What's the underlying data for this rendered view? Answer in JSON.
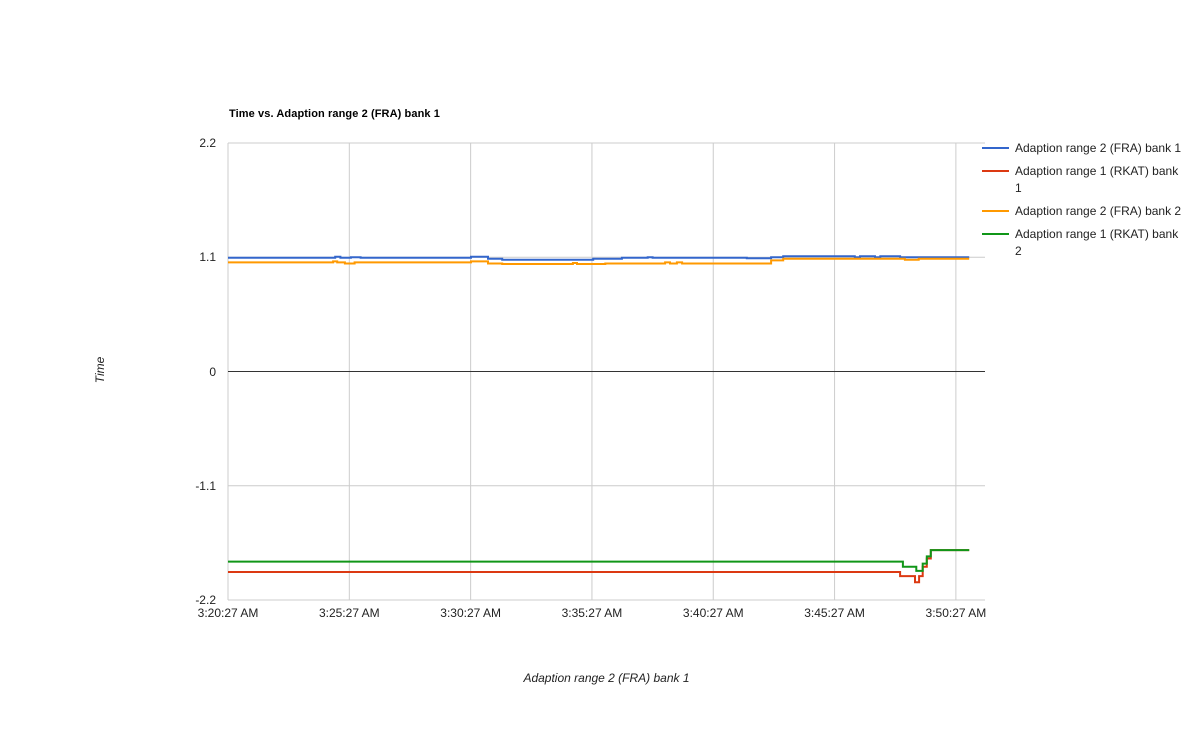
{
  "title": "Time vs. Adaption range 2 (FRA) bank 1",
  "axes": {
    "y_title": "Time",
    "x_title": "Adaption range 2 (FRA) bank 1"
  },
  "colors": {
    "series_blue": "#3366CC",
    "series_red": "#DC3912",
    "series_orange": "#FF9900",
    "series_green": "#109618",
    "gridline": "#CCCCCC",
    "zero_line": "#333333",
    "text": "#222222"
  },
  "chart_data": {
    "type": "line",
    "title": "Time vs. Adaption range 2 (FRA) bank 1",
    "xlabel": "Adaption range 2 (FRA) bank 1",
    "ylabel": "Time",
    "x_ticks": [
      "3:20:27 AM",
      "3:25:27 AM",
      "3:30:27 AM",
      "3:35:27 AM",
      "3:40:27 AM",
      "3:45:27 AM",
      "3:50:27 AM"
    ],
    "y_ticks": [
      "2.2",
      "1.1",
      "0",
      "-1.1",
      "-2.2"
    ],
    "ylim": [
      -2.2,
      2.2
    ],
    "grid": true,
    "legend_position": "right",
    "interpolation": "step-after",
    "series": [
      {
        "name": "Adaption range 2 (FRA) bank 1",
        "color": "#3366CC",
        "points": [
          [
            "3:20:27",
            1.095
          ],
          [
            "3:24:52",
            1.105
          ],
          [
            "3:25:05",
            1.095
          ],
          [
            "3:25:31",
            1.1
          ],
          [
            "3:25:55",
            1.095
          ],
          [
            "3:30:28",
            1.105
          ],
          [
            "3:31:10",
            1.085
          ],
          [
            "3:31:45",
            1.075
          ],
          [
            "3:35:30",
            1.085
          ],
          [
            "3:36:41",
            1.095
          ],
          [
            "3:37:45",
            1.1
          ],
          [
            "3:37:57",
            1.095
          ],
          [
            "3:41:50",
            1.09
          ],
          [
            "3:42:50",
            1.1
          ],
          [
            "3:43:20",
            1.11
          ],
          [
            "3:46:17",
            1.1
          ],
          [
            "3:46:30",
            1.11
          ],
          [
            "3:47:07",
            1.1
          ],
          [
            "3:47:20",
            1.11
          ],
          [
            "3:48:09",
            1.1
          ],
          [
            "3:51:00",
            1.1
          ]
        ]
      },
      {
        "name": "Adaption range 1 (RKAT) bank 1",
        "color": "#DC3912",
        "points": [
          [
            "3:20:27",
            -1.93
          ],
          [
            "3:48:09",
            -1.97
          ],
          [
            "3:48:46",
            -2.03
          ],
          [
            "3:48:56",
            -1.97
          ],
          [
            "3:49:05",
            -1.88
          ],
          [
            "3:49:15",
            -1.8
          ],
          [
            "3:49:25",
            -1.72
          ],
          [
            "3:51:00",
            -1.72
          ]
        ]
      },
      {
        "name": "Adaption range 2 (FRA) bank 2",
        "color": "#FF9900",
        "points": [
          [
            "3:20:27",
            1.05
          ],
          [
            "3:24:47",
            1.06
          ],
          [
            "3:24:57",
            1.05
          ],
          [
            "3:25:16",
            1.04
          ],
          [
            "3:25:40",
            1.05
          ],
          [
            "3:30:28",
            1.06
          ],
          [
            "3:31:10",
            1.04
          ],
          [
            "3:31:45",
            1.035
          ],
          [
            "3:34:40",
            1.045
          ],
          [
            "3:34:50",
            1.035
          ],
          [
            "3:36:00",
            1.04
          ],
          [
            "3:38:28",
            1.05
          ],
          [
            "3:38:40",
            1.04
          ],
          [
            "3:38:57",
            1.05
          ],
          [
            "3:39:10",
            1.04
          ],
          [
            "3:42:50",
            1.07
          ],
          [
            "3:43:20",
            1.085
          ],
          [
            "3:48:21",
            1.075
          ],
          [
            "3:48:55",
            1.085
          ],
          [
            "3:51:00",
            1.085
          ]
        ]
      },
      {
        "name": "Adaption range 1 (RKAT) bank 2",
        "color": "#109618",
        "points": [
          [
            "3:20:27",
            -1.83
          ],
          [
            "3:48:16",
            -1.88
          ],
          [
            "3:48:49",
            -1.92
          ],
          [
            "3:49:05",
            -1.85
          ],
          [
            "3:49:15",
            -1.78
          ],
          [
            "3:49:25",
            -1.72
          ],
          [
            "3:51:00",
            -1.72
          ]
        ]
      }
    ]
  }
}
